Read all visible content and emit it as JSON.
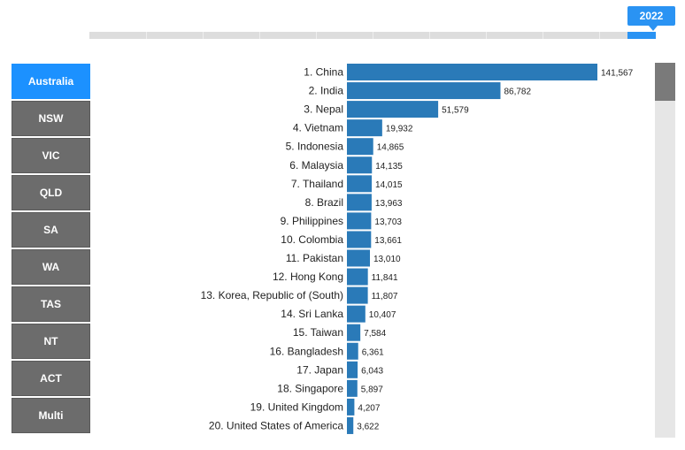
{
  "timeline": {
    "selected_year": "2022"
  },
  "regions": [
    "Australia",
    "NSW",
    "VIC",
    "QLD",
    "SA",
    "WA",
    "TAS",
    "NT",
    "ACT",
    "Multi"
  ],
  "active_region": "Australia",
  "colors": {
    "accent": "#2a93f3",
    "bar": "#2a7ab8",
    "button": "#6c6c6c",
    "active_button": "#1c91ff"
  },
  "chart_data": {
    "type": "bar",
    "orientation": "horizontal",
    "title": "",
    "xlabel": "",
    "ylabel": "",
    "xlim": [
      0,
      141567
    ],
    "categories": [
      "1. China",
      "2. India",
      "3. Nepal",
      "4. Vietnam",
      "5. Indonesia",
      "6. Malaysia",
      "7. Thailand",
      "8. Brazil",
      "9. Philippines",
      "10. Colombia",
      "11. Pakistan",
      "12. Hong Kong",
      "13. Korea, Republic of (South)",
      "14. Sri Lanka",
      "15. Taiwan",
      "16. Bangladesh",
      "17. Japan",
      "18. Singapore",
      "19. United Kingdom",
      "20. United States of America"
    ],
    "values": [
      141567,
      86782,
      51579,
      19932,
      14865,
      14135,
      14015,
      13963,
      13703,
      13661,
      13010,
      11841,
      11807,
      10407,
      7584,
      6361,
      6043,
      5897,
      4207,
      3622
    ],
    "value_labels": [
      "141,567",
      "86,782",
      "51,579",
      "19,932",
      "14,865",
      "14,135",
      "14,015",
      "13,963",
      "13,703",
      "13,661",
      "13,010",
      "11,841",
      "11,807",
      "10,407",
      "7,584",
      "6,361",
      "6,043",
      "5,897",
      "4,207",
      "3,622"
    ],
    "grid": false,
    "legend": "none"
  }
}
